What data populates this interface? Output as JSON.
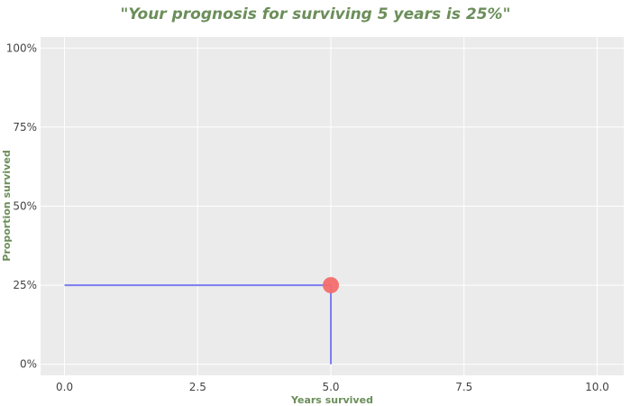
{
  "chart_data": {
    "type": "line",
    "title": "\"Your prognosis for surviving 5 years is 25%\"",
    "xlabel": "Years survived",
    "ylabel": "Proportion survived",
    "xlim": [
      -0.45,
      10.5
    ],
    "ylim": [
      -0.035,
      1.035
    ],
    "x_ticks": [
      {
        "value": 0,
        "label": "0.0"
      },
      {
        "value": 2.5,
        "label": "2.5"
      },
      {
        "value": 5,
        "label": "5.0"
      },
      {
        "value": 7.5,
        "label": "7.5"
      },
      {
        "value": 10,
        "label": "10.0"
      }
    ],
    "y_ticks": [
      {
        "value": 0,
        "label": "0%"
      },
      {
        "value": 0.25,
        "label": "25%"
      },
      {
        "value": 0.5,
        "label": "50%"
      },
      {
        "value": 0.75,
        "label": "75%"
      },
      {
        "value": 1,
        "label": "100%"
      }
    ],
    "grid": true,
    "series": [
      {
        "type": "line",
        "color": "#7b7bf2",
        "x": [
          0,
          5
        ],
        "y": [
          0.25,
          0.25
        ]
      },
      {
        "type": "line",
        "color": "#7b7bf2",
        "x": [
          5,
          5
        ],
        "y": [
          0.25,
          0
        ]
      },
      {
        "type": "scatter",
        "color": "#f46d6d",
        "x": [
          5
        ],
        "y": [
          0.25
        ]
      }
    ],
    "colors": {
      "plot_bg": "#ebebeb",
      "grid": "#ffffff",
      "title": "#6b8e5a",
      "axis_label": "#6b8e5a",
      "tick": "#444444"
    }
  }
}
